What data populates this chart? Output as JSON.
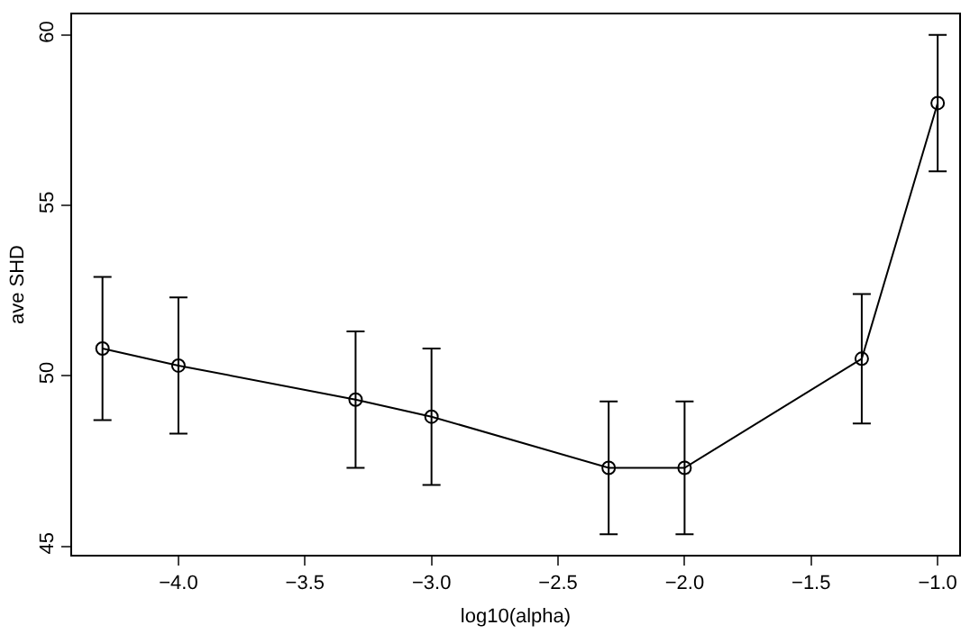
{
  "chart_data": {
    "type": "line",
    "xlabel": "log10(alpha)",
    "ylabel": "ave SHD",
    "x": [
      -4.3,
      -4.0,
      -3.3,
      -3.0,
      -2.3,
      -2.0,
      -1.3,
      -1.0
    ],
    "series": [
      {
        "color": "#000000",
        "values": [
          50.8,
          50.3,
          49.3,
          48.8,
          47.3,
          47.3,
          50.5,
          58.0
        ],
        "errors": [
          2.1,
          2.0,
          2.0,
          2.0,
          1.95,
          1.95,
          1.9,
          2.0
        ]
      }
    ],
    "xlim": [
      -4.42,
      -0.915
    ],
    "ylim": [
      44.75,
      60.6
    ],
    "xticks": [
      {
        "value": -4.0,
        "label": "−4.0"
      },
      {
        "value": -3.5,
        "label": "−3.5"
      },
      {
        "value": -3.0,
        "label": "−3.0"
      },
      {
        "value": -2.5,
        "label": "−2.5"
      },
      {
        "value": -2.0,
        "label": "−2.0"
      },
      {
        "value": -1.5,
        "label": "−1.5"
      },
      {
        "value": -1.0,
        "label": "−1.0"
      }
    ],
    "yticks": [
      45,
      50,
      55,
      60
    ],
    "marker": "circle",
    "line_style": "solid",
    "grid": false
  }
}
